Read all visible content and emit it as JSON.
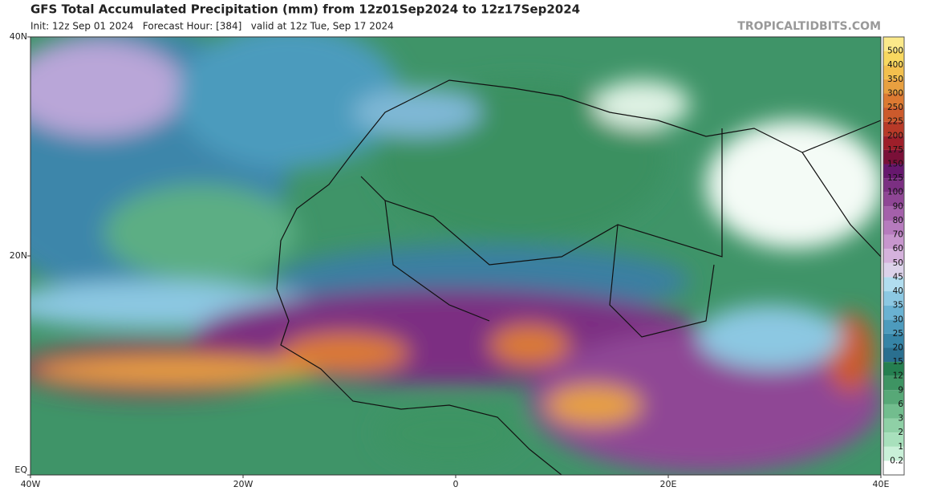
{
  "header": {
    "title": "GFS Total Accumulated Precipitation (mm) from 12z01Sep2024 to 12z17Sep2024",
    "subtitle": "Init: 12z Sep 01 2024   Forecast Hour: [384]   valid at 12z Tue, Sep 17 2024",
    "credit": "TROPICALTIDBITS.COM"
  },
  "axes": {
    "lat_labels": [
      "40N",
      "20N",
      "EQ"
    ],
    "lon_labels": [
      "40W",
      "20W",
      "0",
      "20E",
      "40E"
    ]
  },
  "colorbar": {
    "levels": [
      0.2,
      1,
      2,
      3,
      6,
      9,
      12,
      15,
      20,
      25,
      30,
      35,
      40,
      45,
      50,
      60,
      70,
      80,
      90,
      100,
      125,
      150,
      175,
      200,
      225,
      250,
      300,
      350,
      400,
      500
    ],
    "colors": [
      "#ffffff",
      "#c9f0d8",
      "#a8e0bc",
      "#8fd0a6",
      "#72bd8e",
      "#57a877",
      "#3e9463",
      "#257f50",
      "#2a6f8f",
      "#3684a6",
      "#4d9bbd",
      "#6ab2d2",
      "#8cc8e2",
      "#b1ddef",
      "#dcd2ea",
      "#d5b2dc",
      "#c796cd",
      "#b67bbd",
      "#a460aa",
      "#8f4695",
      "#7b2f82",
      "#67186e",
      "#7a1038",
      "#9e1f2a",
      "#b83a28",
      "#cc5a2c",
      "#dc7a32",
      "#e8a040",
      "#f2c04e",
      "#f8d860",
      "#fbe98a"
    ]
  }
}
